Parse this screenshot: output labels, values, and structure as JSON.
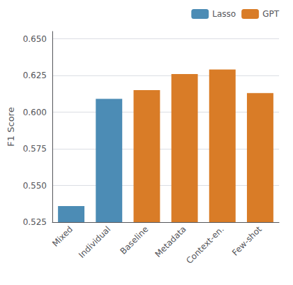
{
  "chart_data": {
    "type": "bar",
    "categories": [
      "Mixed",
      "Individual",
      "Baseline",
      "Metadata",
      "Context-en.",
      "Few-shot"
    ],
    "series": [
      {
        "name": "Lasso",
        "color": "#4c8cb5",
        "values": [
          0.536,
          0.609,
          null,
          null,
          null,
          null
        ]
      },
      {
        "name": "GPT",
        "color": "#d97c27",
        "values": [
          null,
          null,
          0.615,
          0.626,
          0.629,
          0.613
        ]
      }
    ],
    "ylabel": "F1 Score",
    "ylim": [
      0.525,
      0.655
    ],
    "yticks": [
      0.525,
      {
        "value": 0.55,
        "label": "0.550"
      },
      0.575,
      {
        "value": 0.6,
        "label": "0.600"
      },
      0.625,
      {
        "value": 0.65,
        "label": "0.650"
      }
    ],
    "grid": true,
    "legend": "upper right"
  }
}
